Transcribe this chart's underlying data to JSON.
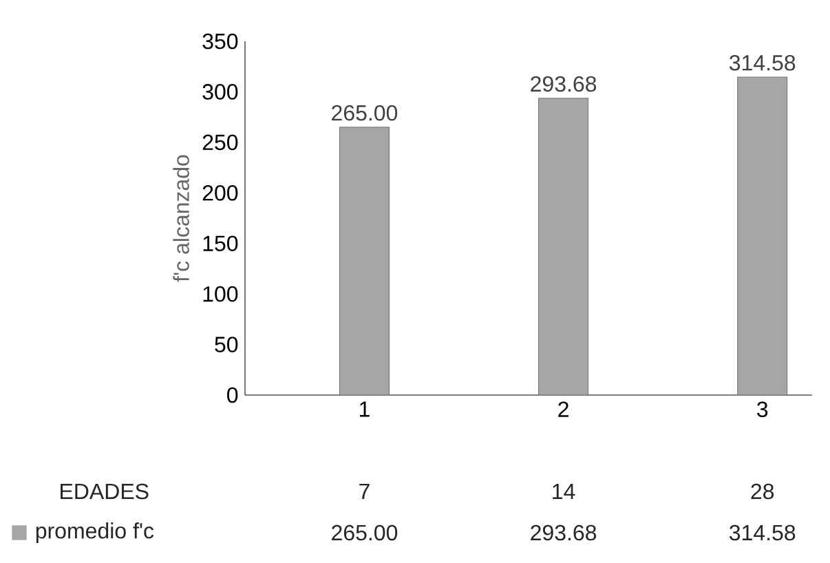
{
  "chart_data": {
    "type": "bar",
    "ylabel": "f'c alcanzado",
    "categories": [
      "1",
      "2",
      "3"
    ],
    "series": [
      {
        "name": "promedio f'c",
        "color": "#a6a6a6",
        "values": [
          265.0,
          293.68,
          314.58
        ],
        "value_labels": [
          "265.00",
          "293.68",
          "314.58"
        ]
      }
    ],
    "ylim": [
      0,
      350
    ],
    "yticks": [
      0,
      50,
      100,
      150,
      200,
      250,
      300,
      350
    ],
    "grid": false,
    "legend": "bottom left",
    "annotations": [
      "EDADES",
      "7",
      "14",
      "28"
    ]
  }
}
